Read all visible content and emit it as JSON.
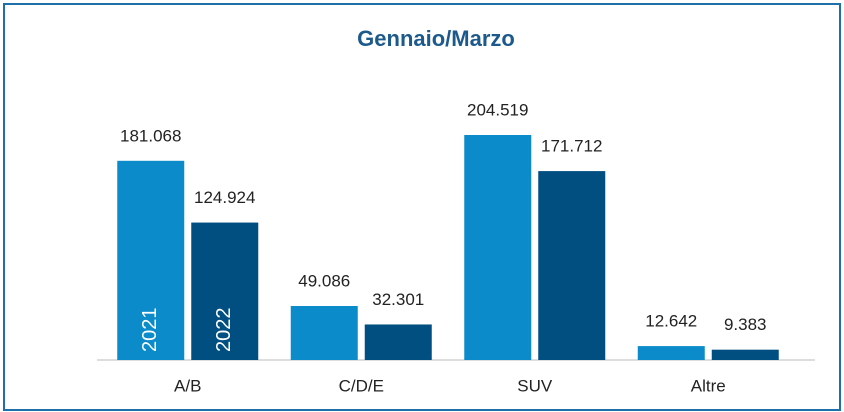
{
  "chart_data": {
    "type": "bar",
    "title": "Gennaio/Marzo",
    "categories": [
      "A/B",
      "C/D/E",
      "SUV",
      "Altre"
    ],
    "series": [
      {
        "name": "2021",
        "color": "#0b8bc9",
        "values": [
          181068,
          49086,
          204519,
          12642
        ],
        "value_labels": [
          "181.068",
          "49.086",
          "204.519",
          "12.642"
        ]
      },
      {
        "name": "2022",
        "color": "#014f80",
        "values": [
          124924,
          32301,
          171712,
          9383
        ],
        "value_labels": [
          "124.924",
          "32.301",
          "171.712",
          "9.383"
        ]
      }
    ]
  }
}
